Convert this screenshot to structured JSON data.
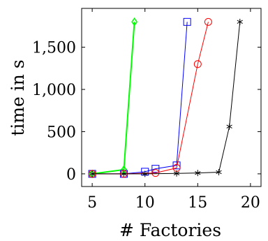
{
  "chart_data": {
    "type": "line",
    "title": "",
    "xlabel": "# Factories",
    "ylabel": "time in s",
    "xlim": [
      4,
      21
    ],
    "ylim": [
      -150,
      1960
    ],
    "x_ticks": [
      5,
      10,
      15,
      20
    ],
    "x_tick_labels": [
      "5",
      "10",
      "15",
      "20"
    ],
    "y_ticks": [
      0,
      500,
      1000,
      1500
    ],
    "y_tick_labels": [
      "0",
      "500",
      "1,000",
      "1,500"
    ],
    "grid": false,
    "legend": "none",
    "series": [
      {
        "color": "#00ff00",
        "marker": "diamond",
        "points": [
          [
            5,
            0
          ],
          [
            8,
            50
          ],
          [
            9,
            1800
          ]
        ]
      },
      {
        "color": "#0000ff",
        "marker": "square",
        "points": [
          [
            5,
            0
          ],
          [
            8,
            0
          ],
          [
            10,
            25
          ],
          [
            11,
            60
          ],
          [
            13,
            100
          ],
          [
            14,
            1800
          ]
        ]
      },
      {
        "color": "#ff0000",
        "marker": "circle",
        "points": [
          [
            5,
            0
          ],
          [
            8,
            0
          ],
          [
            11,
            10
          ],
          [
            13,
            70
          ],
          [
            15,
            1300
          ],
          [
            16,
            1800
          ]
        ]
      },
      {
        "color": "#000000",
        "marker": "star",
        "points": [
          [
            5,
            0
          ],
          [
            8,
            0
          ],
          [
            10,
            0
          ],
          [
            13,
            5
          ],
          [
            15,
            10
          ],
          [
            17,
            20
          ],
          [
            18,
            560
          ],
          [
            19,
            1800
          ]
        ]
      }
    ]
  }
}
